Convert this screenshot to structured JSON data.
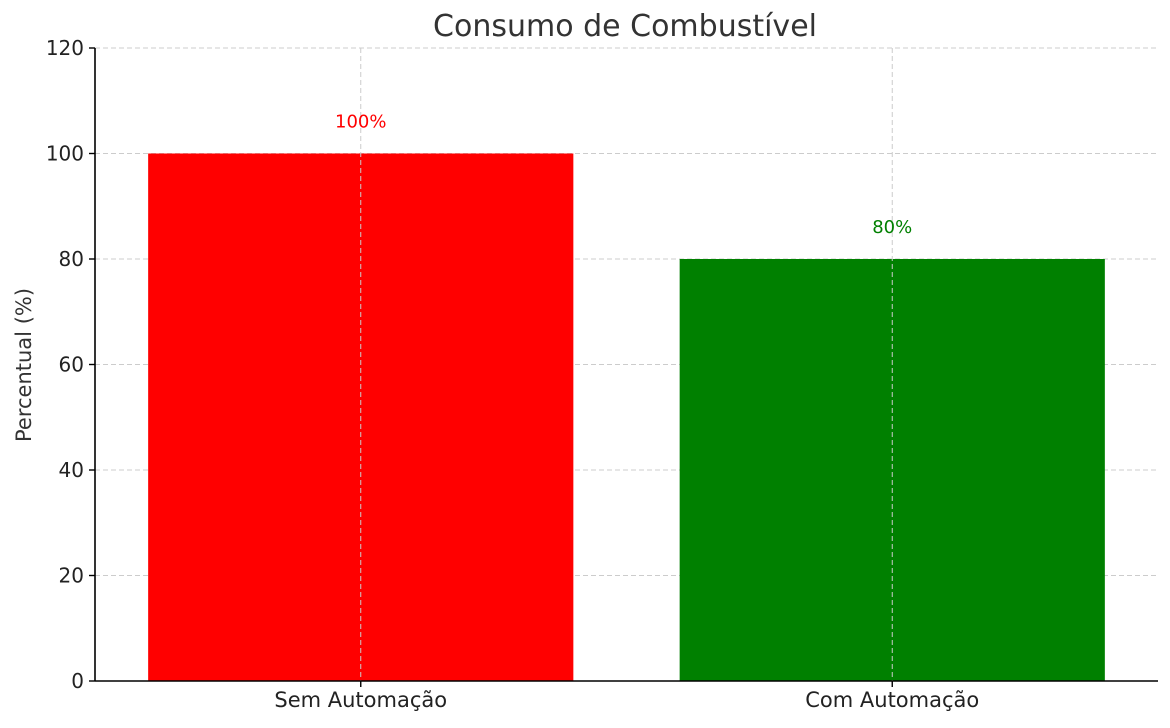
{
  "chart_data": {
    "type": "bar",
    "title": "Consumo de Combustível",
    "xlabel": "",
    "ylabel": "Percentual (%)",
    "categories": [
      "Sem Automação",
      "Com Automação"
    ],
    "values": [
      100,
      80
    ],
    "data_labels": [
      "100%",
      "80%"
    ],
    "bar_colors": [
      "#ff0000",
      "#008000"
    ],
    "ylim": [
      0,
      120
    ],
    "yticks": [
      0,
      20,
      40,
      60,
      80,
      100,
      120
    ],
    "grid": true,
    "legend": null
  }
}
